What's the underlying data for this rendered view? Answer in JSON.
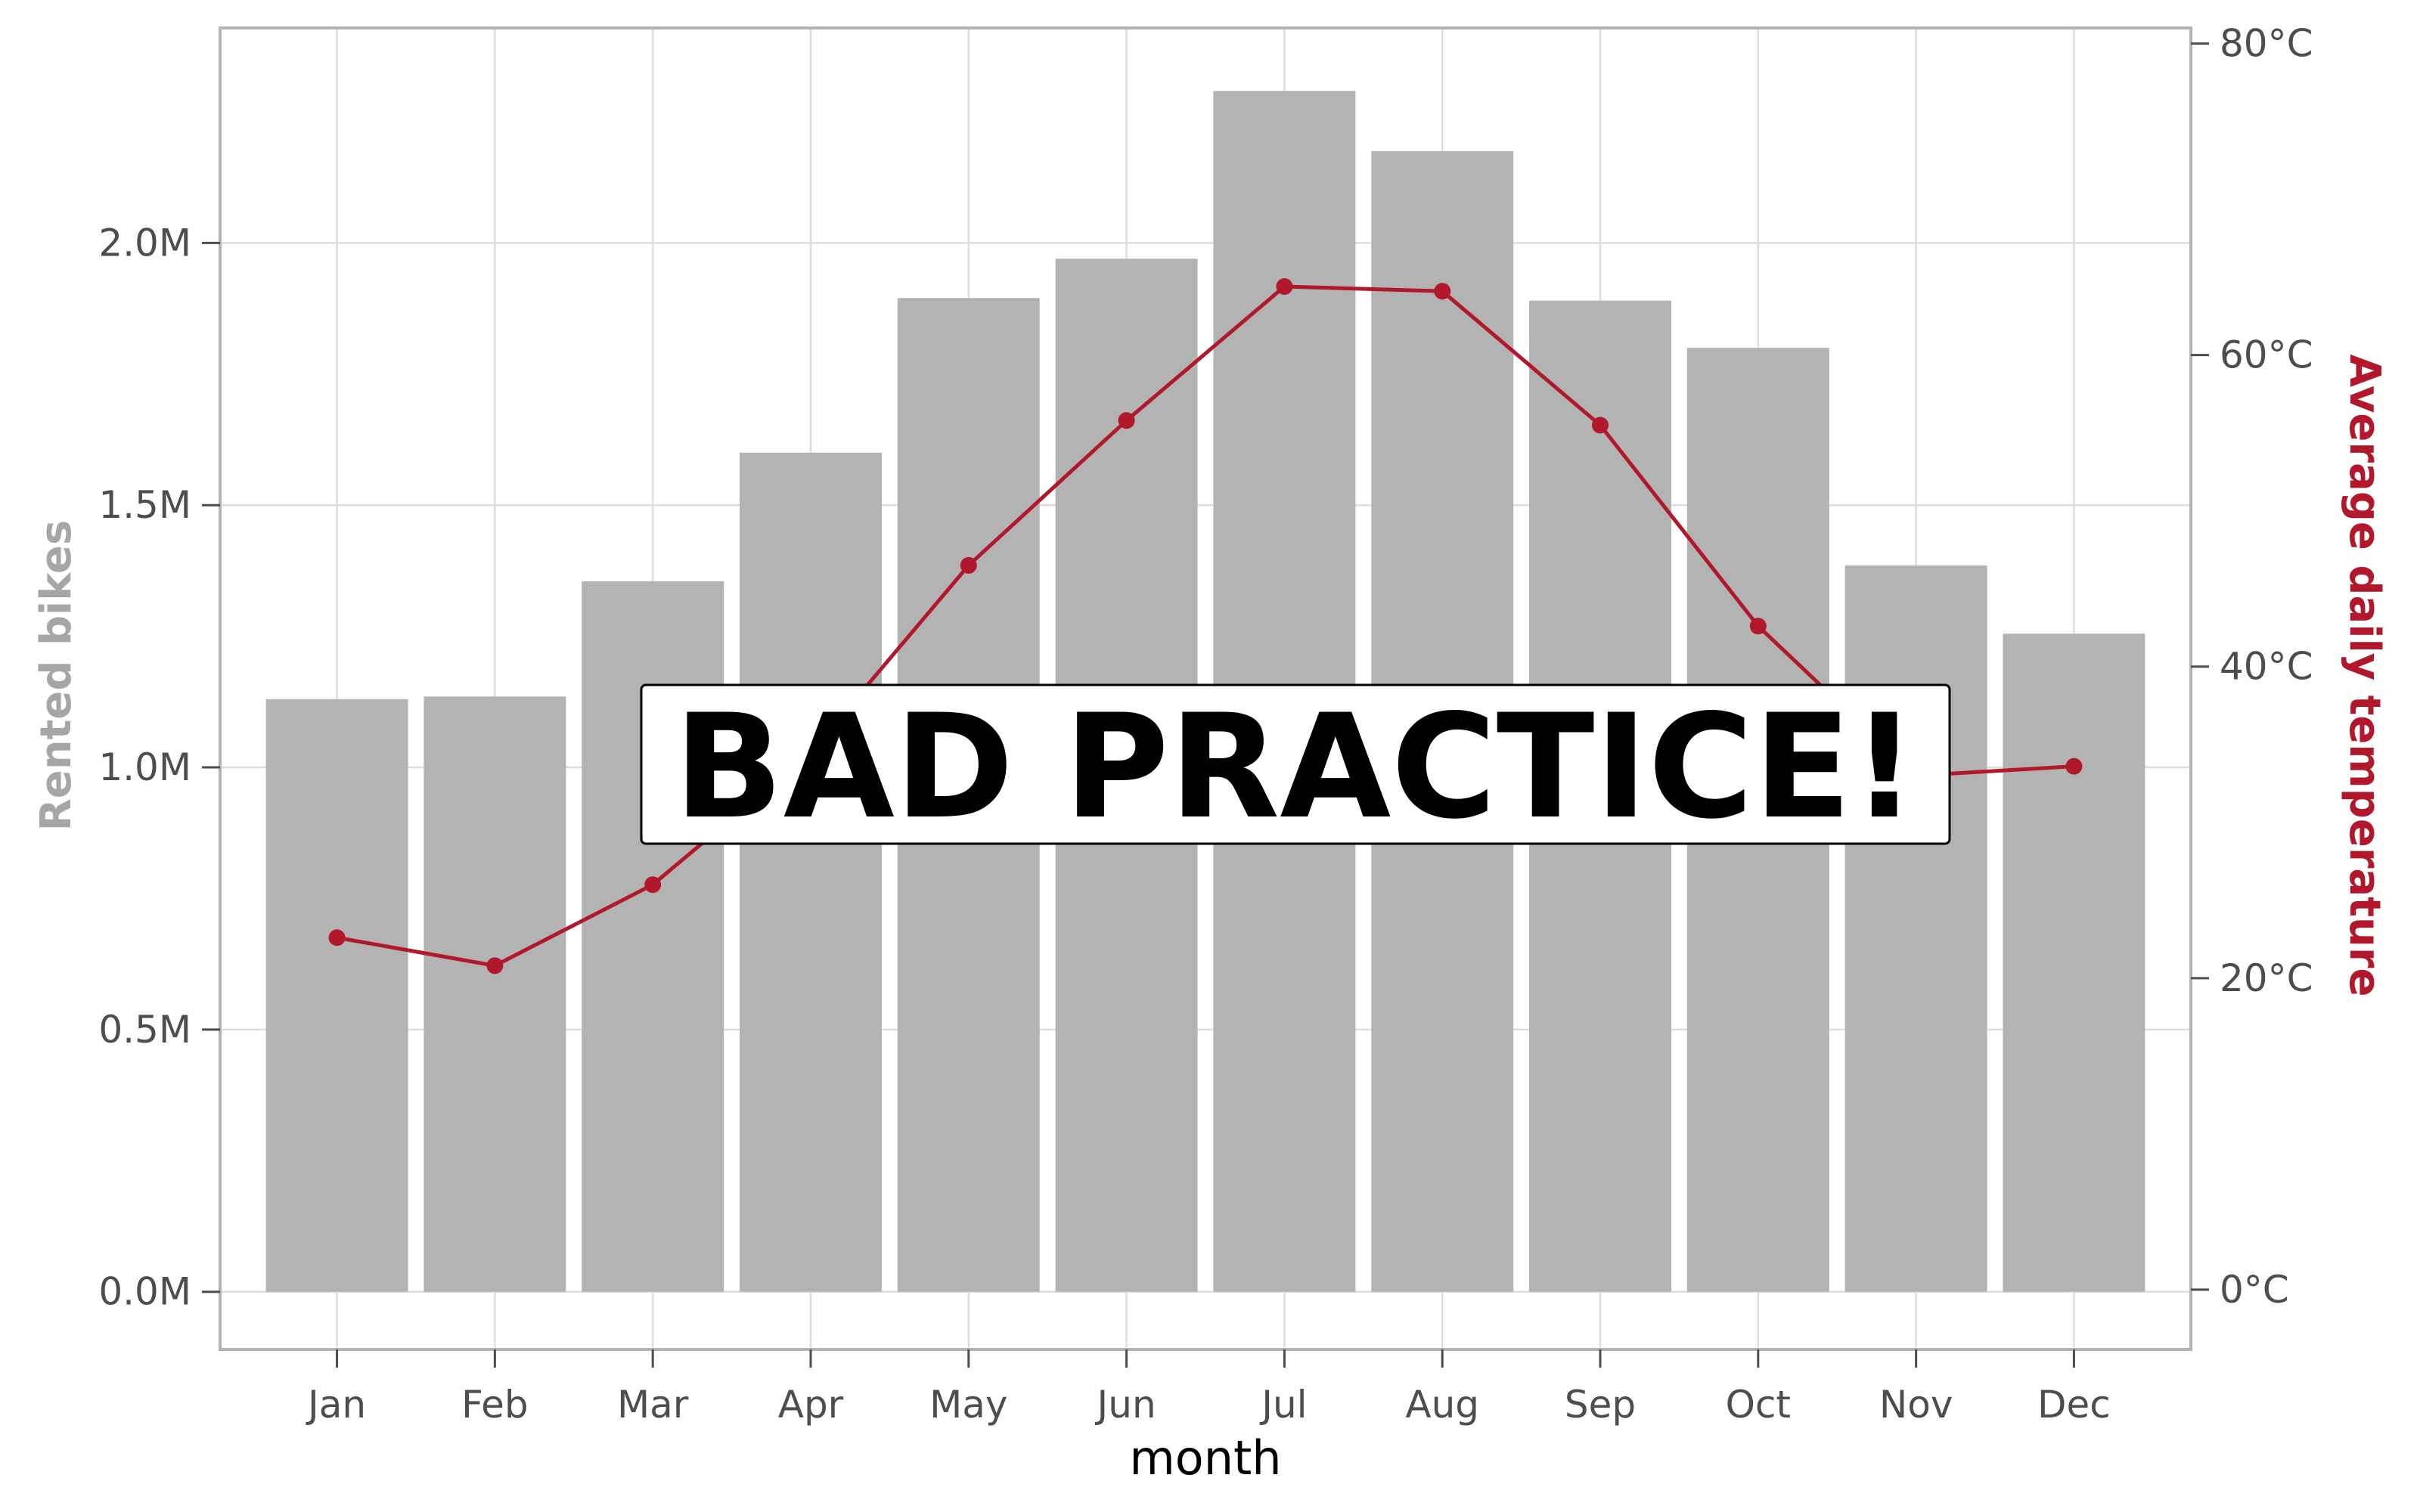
{
  "chart_data": {
    "type": "bar",
    "categories": [
      "Jan",
      "Feb",
      "Mar",
      "Apr",
      "May",
      "Jun",
      "Jul",
      "Aug",
      "Sep",
      "Oct",
      "Nov",
      "Dec"
    ],
    "xlabel": "month",
    "series": [
      {
        "type": "bar",
        "axis": "left",
        "values": [
          1130000,
          1135000,
          1355000,
          1600000,
          1895000,
          1970000,
          2290000,
          2175000,
          1890000,
          1800000,
          1385000,
          1255000
        ]
      },
      {
        "type": "line",
        "axis": "right",
        "values": [
          22.6,
          20.8,
          26.0,
          34.5,
          46.5,
          55.8,
          64.4,
          64.1,
          55.5,
          42.6,
          33.0,
          33.6
        ]
      }
    ],
    "y_left": {
      "label": "Rented bikes",
      "lim": [
        -110000,
        2410000
      ],
      "ticks": [
        0,
        500000,
        1000000,
        1500000,
        2000000
      ],
      "tick_labels": [
        "0.0M",
        "0.5M",
        "1.0M",
        "1.5M",
        "2.0M"
      ]
    },
    "y_right": {
      "label": "Average daily temperature",
      "lim": [
        -3.84,
        81.0
      ],
      "ticks": [
        0,
        20,
        40,
        60,
        80
      ],
      "tick_labels": [
        "0°C",
        "20°C",
        "40°C",
        "60°C",
        "80°C"
      ]
    },
    "grid": true,
    "colors": {
      "bars": "#b3b3b3",
      "line": "#b2182b",
      "left_axis_title": "#a6a6a6",
      "right_axis_title": "#b2182b",
      "grid": "#dedede",
      "panel_border": "#b3b3b3"
    },
    "annotation": "BAD PRACTICE!"
  }
}
